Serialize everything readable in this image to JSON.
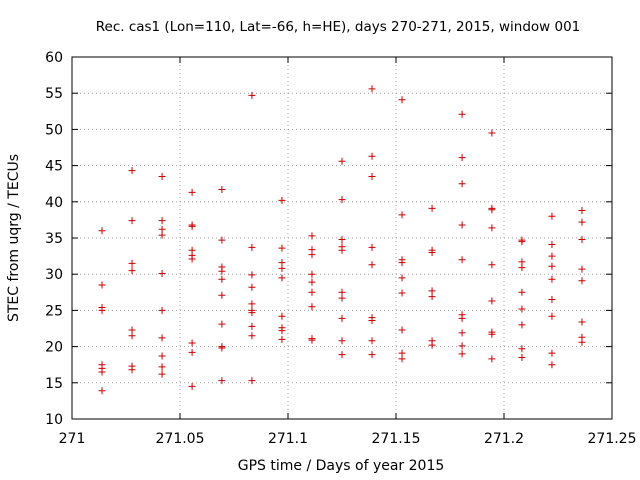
{
  "chart_data": {
    "type": "scatter",
    "title": "Rec. cas1 (Lon=110, Lat=-66, h=HE), days 270-271, 2015, window 001",
    "xlabel": "GPS time / Days of year 2015",
    "ylabel": "STEC from uqrg / TECUs",
    "xlim": [
      271,
      271.25
    ],
    "ylim": [
      10,
      60
    ],
    "xticks": [
      271,
      271.05,
      271.1,
      271.15,
      271.2,
      271.25
    ],
    "xtick_labels": [
      "271",
      "271.05",
      "271.1",
      "271.15",
      "271.2",
      "271.25"
    ],
    "yticks": [
      10,
      15,
      20,
      25,
      30,
      35,
      40,
      45,
      50,
      55,
      60
    ],
    "ytick_labels": [
      "10",
      "15",
      "20",
      "25",
      "30",
      "35",
      "40",
      "45",
      "50",
      "55",
      "60"
    ],
    "grid": true,
    "marker": "+",
    "colors": {
      "points": "#cc0000",
      "grid": "#a0a0a0",
      "axis": "#000000"
    },
    "points": [
      [
        271.0139,
        36.0
      ],
      [
        271.0139,
        28.5
      ],
      [
        271.0139,
        25.4
      ],
      [
        271.0139,
        25.0
      ],
      [
        271.0139,
        17.5
      ],
      [
        271.0139,
        17.0
      ],
      [
        271.0139,
        16.5
      ],
      [
        271.0139,
        13.9
      ],
      [
        271.0278,
        44.3
      ],
      [
        271.0278,
        37.4
      ],
      [
        271.0278,
        31.5
      ],
      [
        271.0278,
        30.5
      ],
      [
        271.0278,
        22.3
      ],
      [
        271.0278,
        21.5
      ],
      [
        271.0278,
        17.3
      ],
      [
        271.0278,
        16.8
      ],
      [
        271.0417,
        43.5
      ],
      [
        271.0417,
        37.4
      ],
      [
        271.0417,
        36.2
      ],
      [
        271.0417,
        35.4
      ],
      [
        271.0417,
        30.1
      ],
      [
        271.0417,
        25.0
      ],
      [
        271.0417,
        21.2
      ],
      [
        271.0417,
        18.7
      ],
      [
        271.0417,
        17.2
      ],
      [
        271.0417,
        16.2
      ],
      [
        271.0556,
        41.3
      ],
      [
        271.0556,
        36.8
      ],
      [
        271.0556,
        36.6
      ],
      [
        271.0556,
        33.3
      ],
      [
        271.0556,
        32.6
      ],
      [
        271.0556,
        32.1
      ],
      [
        271.0556,
        20.5
      ],
      [
        271.0556,
        19.2
      ],
      [
        271.0556,
        14.5
      ],
      [
        271.0694,
        41.7
      ],
      [
        271.0694,
        34.7
      ],
      [
        271.0694,
        31.0
      ],
      [
        271.0694,
        30.4
      ],
      [
        271.0694,
        29.3
      ],
      [
        271.0694,
        27.1
      ],
      [
        271.0694,
        23.1
      ],
      [
        271.0694,
        20.0
      ],
      [
        271.0694,
        19.8
      ],
      [
        271.0694,
        15.3
      ],
      [
        271.0833,
        54.7
      ],
      [
        271.0833,
        33.7
      ],
      [
        271.0833,
        29.9
      ],
      [
        271.0833,
        28.2
      ],
      [
        271.0833,
        25.9
      ],
      [
        271.0833,
        25.0
      ],
      [
        271.0833,
        24.7
      ],
      [
        271.0833,
        22.8
      ],
      [
        271.0833,
        21.5
      ],
      [
        271.0833,
        15.3
      ],
      [
        271.0972,
        40.2
      ],
      [
        271.0972,
        33.6
      ],
      [
        271.0972,
        31.6
      ],
      [
        271.0972,
        30.8
      ],
      [
        271.0972,
        29.5
      ],
      [
        271.0972,
        24.2
      ],
      [
        271.0972,
        22.6
      ],
      [
        271.0972,
        22.2
      ],
      [
        271.0972,
        21.0
      ],
      [
        271.1111,
        35.3
      ],
      [
        271.1111,
        33.4
      ],
      [
        271.1111,
        32.7
      ],
      [
        271.1111,
        30.0
      ],
      [
        271.1111,
        28.9
      ],
      [
        271.1111,
        27.5
      ],
      [
        271.1111,
        25.5
      ],
      [
        271.1111,
        21.1
      ],
      [
        271.1111,
        20.9
      ],
      [
        271.125,
        45.6
      ],
      [
        271.125,
        40.3
      ],
      [
        271.125,
        34.8
      ],
      [
        271.125,
        33.8
      ],
      [
        271.125,
        33.3
      ],
      [
        271.125,
        27.5
      ],
      [
        271.125,
        26.7
      ],
      [
        271.125,
        23.9
      ],
      [
        271.125,
        20.8
      ],
      [
        271.125,
        18.9
      ],
      [
        271.1389,
        55.6
      ],
      [
        271.1389,
        46.3
      ],
      [
        271.1389,
        43.5
      ],
      [
        271.1389,
        33.7
      ],
      [
        271.1389,
        31.3
      ],
      [
        271.1389,
        24.0
      ],
      [
        271.1389,
        23.6
      ],
      [
        271.1389,
        20.8
      ],
      [
        271.1389,
        18.9
      ],
      [
        271.1528,
        54.1
      ],
      [
        271.1528,
        38.2
      ],
      [
        271.1528,
        32.0
      ],
      [
        271.1528,
        31.6
      ],
      [
        271.1528,
        29.5
      ],
      [
        271.1528,
        27.4
      ],
      [
        271.1528,
        22.3
      ],
      [
        271.1528,
        19.1
      ],
      [
        271.1528,
        18.3
      ],
      [
        271.1667,
        39.1
      ],
      [
        271.1667,
        33.3
      ],
      [
        271.1667,
        33.0
      ],
      [
        271.1667,
        27.7
      ],
      [
        271.1667,
        26.9
      ],
      [
        271.1667,
        20.8
      ],
      [
        271.1667,
        20.2
      ],
      [
        271.1806,
        52.1
      ],
      [
        271.1806,
        46.1
      ],
      [
        271.1806,
        42.5
      ],
      [
        271.1806,
        36.8
      ],
      [
        271.1806,
        32.0
      ],
      [
        271.1806,
        24.4
      ],
      [
        271.1806,
        23.9
      ],
      [
        271.1806,
        21.9
      ],
      [
        271.1806,
        20.1
      ],
      [
        271.1806,
        19.0
      ],
      [
        271.1944,
        49.5
      ],
      [
        271.1944,
        39.1
      ],
      [
        271.1944,
        38.9
      ],
      [
        271.1944,
        36.4
      ],
      [
        271.1944,
        31.3
      ],
      [
        271.1944,
        26.3
      ],
      [
        271.1944,
        22.0
      ],
      [
        271.1944,
        21.7
      ],
      [
        271.1944,
        18.3
      ],
      [
        271.2083,
        34.7
      ],
      [
        271.2083,
        34.5
      ],
      [
        271.2083,
        31.7
      ],
      [
        271.2083,
        30.9
      ],
      [
        271.2083,
        27.5
      ],
      [
        271.2083,
        25.2
      ],
      [
        271.2083,
        23.0
      ],
      [
        271.2083,
        19.7
      ],
      [
        271.2083,
        18.5
      ],
      [
        271.2222,
        38.0
      ],
      [
        271.2222,
        34.1
      ],
      [
        271.2222,
        32.5
      ],
      [
        271.2222,
        31.1
      ],
      [
        271.2222,
        29.3
      ],
      [
        271.2222,
        26.5
      ],
      [
        271.2222,
        24.2
      ],
      [
        271.2222,
        19.1
      ],
      [
        271.2222,
        17.5
      ],
      [
        271.2361,
        38.8
      ],
      [
        271.2361,
        37.2
      ],
      [
        271.2361,
        34.8
      ],
      [
        271.2361,
        30.7
      ],
      [
        271.2361,
        29.1
      ],
      [
        271.2361,
        23.4
      ],
      [
        271.2361,
        21.3
      ],
      [
        271.2361,
        20.6
      ]
    ]
  }
}
